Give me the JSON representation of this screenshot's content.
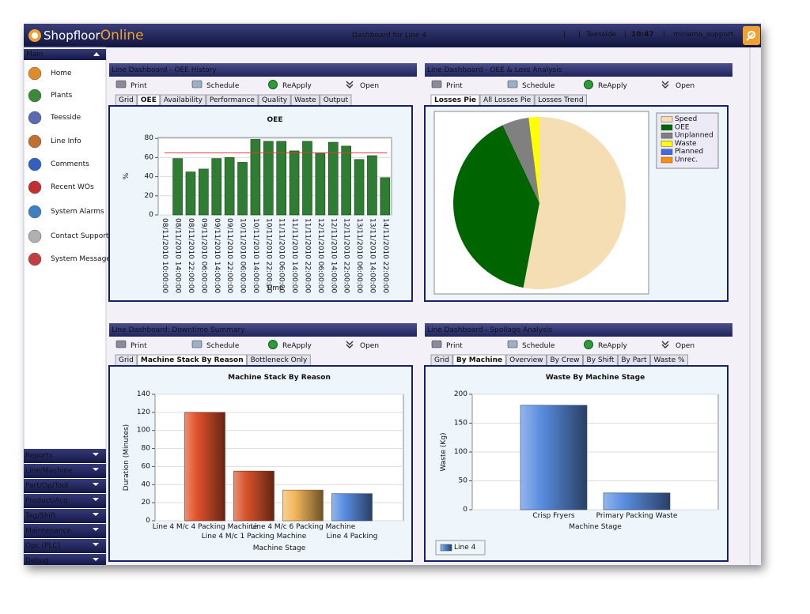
{
  "header": {
    "logo_text": "Shopfloor",
    "logo_accent": "Online",
    "title": "Dashboard for Line 4",
    "status": [
      "|",
      "|",
      "Teesside",
      "|",
      "10:47",
      "|",
      "miriama_support"
    ]
  },
  "sidebar": {
    "main_section": "Main",
    "items": [
      "Home",
      "Plants",
      "Teesside",
      "Line Info",
      "Comments",
      "Recent WOs",
      "System Alarms",
      "Contact Support",
      "System Message"
    ],
    "sections": [
      "Reports",
      "Line/Machine",
      "Part/Op/Tool",
      "Product/Acq",
      "Tag/Shift",
      "Maintenance",
      "Opc (PLC)",
      "Debug"
    ]
  },
  "panels": [
    {
      "title": "Line Dashboard - OEE History",
      "toolbar": [
        "Print",
        "Schedule",
        "ReApply",
        "Open"
      ],
      "tabs": [
        "Grid",
        "OEE",
        "Availability",
        "Performance",
        "Quality",
        "Waste",
        "Output"
      ],
      "active_tab": 1,
      "chart": {
        "type": "bar",
        "title": "OEE",
        "y_label": "%",
        "x_label": "Time",
        "categories": [
          "08/11/2010 10:00:00",
          "08/11/2010 14:00:00",
          "08/11/2010 22:00:00",
          "09/11/2010 06:00:00",
          "09/11/2010 14:00:00",
          "09/11/2010 22:00:00",
          "10/11/2010 06:00:00",
          "10/11/2010 14:00:00",
          "10/11/2010 22:00:00",
          "11/11/2010 06:00:00",
          "11/11/2010 14:00:00",
          "11/11/2010 22:00:00",
          "12/11/2010 06:00:00",
          "12/11/2010 14:00:00",
          "12/11/2010 22:00:00",
          "13/11/2010 06:00:00",
          "13/11/2010 14:00:00",
          "14/11/2010 22:00:00"
        ],
        "values": [
          null,
          59,
          45,
          48,
          59,
          60,
          55,
          79,
          77,
          77,
          67,
          77,
          65,
          76,
          72,
          58,
          62,
          39
        ],
        "color": "#2e7d32",
        "target": 65,
        "target_color": "#e53935",
        "ylim": [
          0,
          81
        ],
        "yticks": [
          0,
          20,
          40,
          60,
          80
        ],
        "grid": true,
        "x_label_rotation": 90
      }
    },
    {
      "title": "Line Dashboard - OEE & Loss Analysis",
      "toolbar": [
        "Print",
        "Schedule",
        "ReApply",
        "Open"
      ],
      "tabs": [
        "Losses Pie",
        "All Losses Pie",
        "Losses Trend"
      ],
      "active_tab": 0,
      "chart": {
        "type": "pie",
        "categories": [
          "Speed",
          "OEE",
          "Unplanned",
          "Waste",
          "Planned",
          "Unrec."
        ],
        "values": [
          53,
          40,
          5,
          2,
          0,
          0
        ],
        "colors": [
          "#f5deb3",
          "#006400",
          "#808080",
          "#ffff00",
          "#4169e1",
          "#ff8c00"
        ],
        "legend": "top-right"
      }
    },
    {
      "title": "Line Dashboard: Downtime Summary",
      "toolbar": [
        "Print",
        "Schedule",
        "ReApply",
        "Open"
      ],
      "tabs": [
        "Grid",
        "Machine Stack By Reason",
        "Bottleneck Only"
      ],
      "active_tab": 1,
      "chart": {
        "type": "bar",
        "title": "Machine Stack By Reason",
        "y_label": "Duration (Minutes)",
        "x_label": "Machine Stage",
        "categories": [
          "Line 4 M/c 4 Packing Machine",
          "Line 4 M/c 1 Packing Machine",
          "Line 4 M/c 6 Packing Machine",
          "Line 4 Packing"
        ],
        "values": [
          120,
          55,
          34,
          30
        ],
        "colors": [
          "#e0522a",
          "#d9532b",
          "#f2b65a",
          "#5a8ee0"
        ],
        "gradient": true,
        "ylim": [
          0,
          140
        ],
        "yticks": [
          0,
          20,
          40,
          60,
          80,
          100,
          120,
          140
        ],
        "grid": true,
        "label_stagger": true
      }
    },
    {
      "title": "Line Dashboard - Spoilage Analysis",
      "toolbar": [
        "Print",
        "Schedule",
        "ReApply",
        "Open"
      ],
      "tabs": [
        "Grid",
        "By Machine",
        "Overview",
        "By Crew",
        "By Shift",
        "By Part",
        "Waste %"
      ],
      "active_tab": 1,
      "chart": {
        "type": "bar",
        "title": "Waste By Machine Stage",
        "y_label": "Waste (Kg)",
        "x_label": "Machine Stage",
        "categories": [
          "Crisp Fryers",
          "Primary Packing Waste"
        ],
        "series": [
          {
            "name": "Line 4",
            "color": "#5a8ee0",
            "values": [
              181,
              29
            ]
          }
        ],
        "gradient": true,
        "ylim": [
          0,
          200
        ],
        "yticks": [
          0,
          50,
          100,
          150,
          200
        ],
        "grid": true,
        "legend": "bottom-left"
      }
    }
  ]
}
